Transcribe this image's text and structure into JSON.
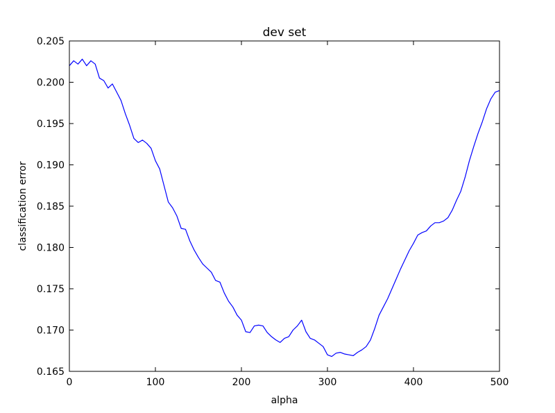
{
  "chart_data": {
    "type": "line",
    "title": "dev set",
    "xlabel": "alpha",
    "ylabel": "classification error",
    "xlim": [
      0,
      500
    ],
    "ylim": [
      0.165,
      0.205
    ],
    "xticks": [
      "0",
      "100",
      "200",
      "300",
      "400",
      "500"
    ],
    "yticks": [
      "0.165",
      "0.170",
      "0.175",
      "0.180",
      "0.185",
      "0.190",
      "0.195",
      "0.200",
      "0.205"
    ],
    "grid": false,
    "line_color": "#0000ff",
    "series": [
      {
        "x": [
          0,
          5,
          10,
          15,
          20,
          25,
          30,
          35,
          40,
          45,
          50,
          55,
          60,
          65,
          70,
          75,
          80,
          85,
          90,
          95,
          100,
          105,
          110,
          115,
          120,
          125,
          130,
          135,
          140,
          145,
          150,
          155,
          160,
          165,
          170,
          175,
          180,
          185,
          190,
          195,
          200,
          205,
          210,
          215,
          220,
          225,
          230,
          235,
          240,
          245,
          250,
          255,
          260,
          265,
          270,
          275,
          280,
          285,
          290,
          295,
          300,
          305,
          310,
          315,
          320,
          325,
          330,
          335,
          340,
          345,
          350,
          355,
          360,
          365,
          370,
          375,
          380,
          385,
          390,
          395,
          400,
          405,
          410,
          415,
          420,
          425,
          430,
          435,
          440,
          445,
          450,
          455,
          460,
          465,
          470,
          475,
          480,
          485,
          490,
          495,
          500
        ],
        "y": [
          0.202,
          0.2026,
          0.2022,
          0.2028,
          0.202,
          0.2026,
          0.2022,
          0.2005,
          0.2002,
          0.1993,
          0.1998,
          0.1988,
          0.1978,
          0.1962,
          0.1948,
          0.1932,
          0.1927,
          0.193,
          0.1926,
          0.192,
          0.1905,
          0.1895,
          0.1875,
          0.1855,
          0.1848,
          0.1838,
          0.1823,
          0.1822,
          0.1808,
          0.1797,
          0.1788,
          0.178,
          0.1775,
          0.177,
          0.176,
          0.1758,
          0.1745,
          0.1735,
          0.1728,
          0.1718,
          0.1712,
          0.1698,
          0.1697,
          0.1705,
          0.1706,
          0.1705,
          0.1697,
          0.1692,
          0.1688,
          0.1685,
          0.169,
          0.1692,
          0.17,
          0.1705,
          0.1712,
          0.1698,
          0.169,
          0.1688,
          0.1684,
          0.168,
          0.167,
          0.1668,
          0.1672,
          0.1673,
          0.1671,
          0.167,
          0.1669,
          0.1673,
          0.1676,
          0.168,
          0.1688,
          0.1702,
          0.1718,
          0.1728,
          0.1738,
          0.175,
          0.1762,
          0.1774,
          0.1785,
          0.1796,
          0.1805,
          0.1815,
          0.1818,
          0.182,
          0.1826,
          0.183,
          0.183,
          0.1832,
          0.1836,
          0.1845,
          0.1857,
          0.1868,
          0.1885,
          0.1905,
          0.1922,
          0.1938,
          0.1952,
          0.1968,
          0.198,
          0.1988,
          0.199
        ]
      }
    ]
  }
}
